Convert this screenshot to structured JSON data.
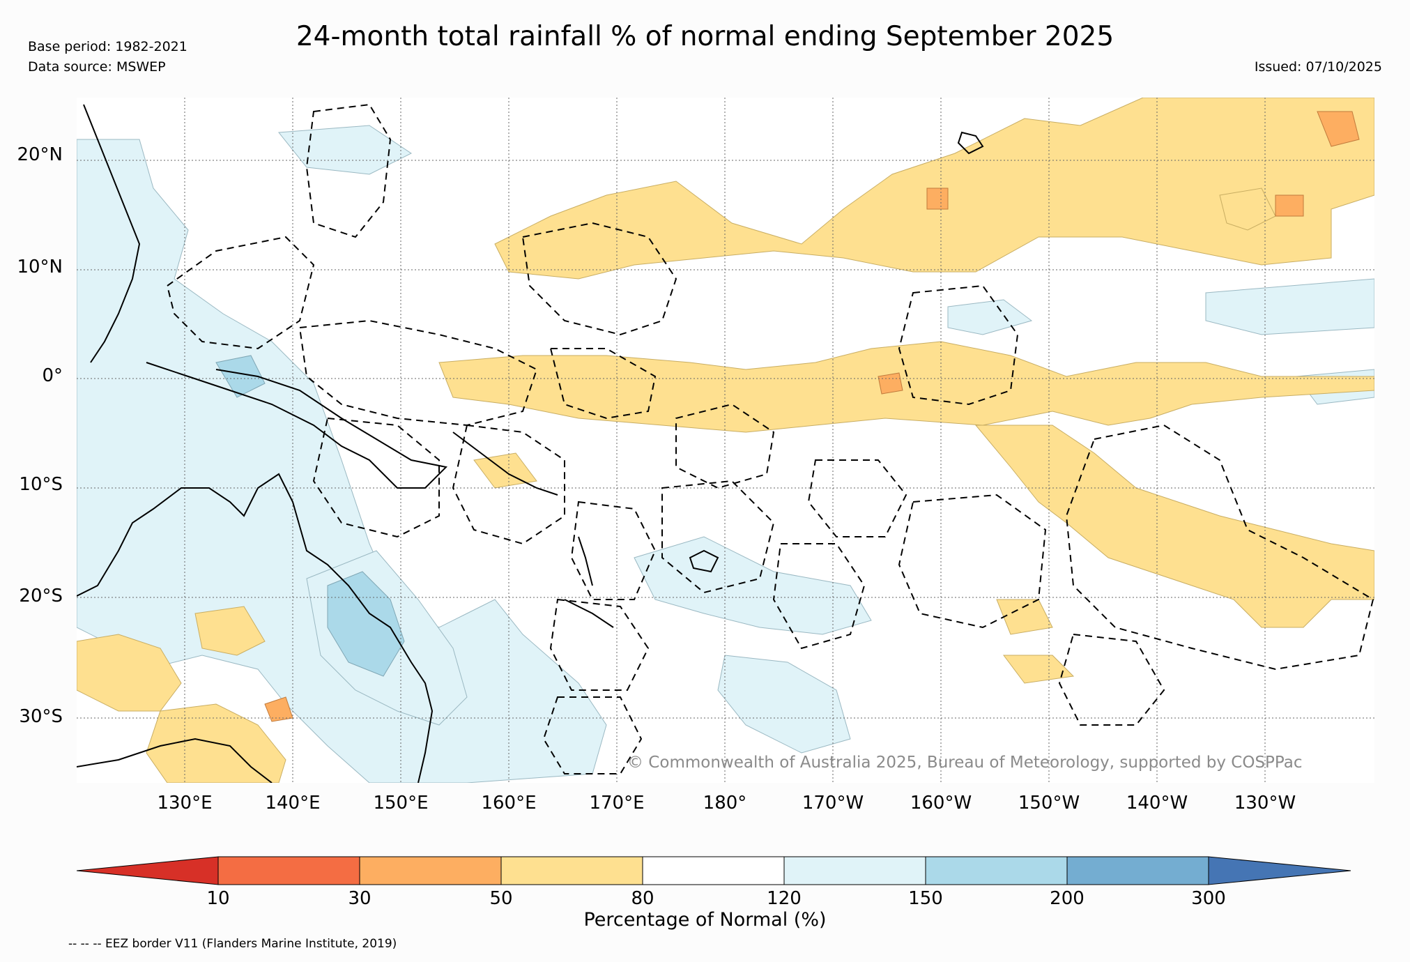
{
  "header": {
    "title": "24-month total rainfall % of normal ending September 2025",
    "base_period": "Base period: 1982-2021",
    "data_source": "Data source: MSWEP",
    "issued": "Issued: 07/10/2025"
  },
  "map": {
    "lat_labels": [
      "20°N",
      "10°N",
      "0°",
      "10°S",
      "20°S",
      "30°S"
    ],
    "lon_labels": [
      "130°E",
      "140°E",
      "150°E",
      "160°E",
      "170°E",
      "180°",
      "170°W",
      "160°W",
      "150°W",
      "140°W",
      "130°W"
    ],
    "copyright": "© Commonwealth of Australia 2025, Bureau of Meteorology, supported by COSPPac",
    "regions": [
      {
        "name": "north-pacific-dry-band",
        "category": "50-80"
      },
      {
        "name": "equatorial-dry-band",
        "category": "50-80"
      },
      {
        "name": "south-pacific-dry-band",
        "category": "50-80"
      },
      {
        "name": "maritime-continent-wet",
        "category": "120-150"
      },
      {
        "name": "queensland-wet",
        "category": "150-200"
      },
      {
        "name": "central-australia-dry",
        "category": "50-80"
      }
    ]
  },
  "colorbar": {
    "title": "Percentage of Normal (%)",
    "ticks": [
      "10",
      "30",
      "50",
      "80",
      "120",
      "150",
      "200",
      "300"
    ],
    "colors": [
      "#d73027",
      "#f46d43",
      "#fdae61",
      "#fee090",
      "#ffffff",
      "#e0f3f8",
      "#abd9e9",
      "#74add1",
      "#4575b4"
    ]
  },
  "footer": {
    "eez_note": "-- -- -- EEZ border V11 (Flanders Marine Institute, 2019)"
  },
  "legend": {
    "dry_color": "#fee090",
    "dry_strong_color": "#fdae61",
    "wet_color": "#e0f3f8",
    "wet_strong_color": "#abd9e9"
  }
}
